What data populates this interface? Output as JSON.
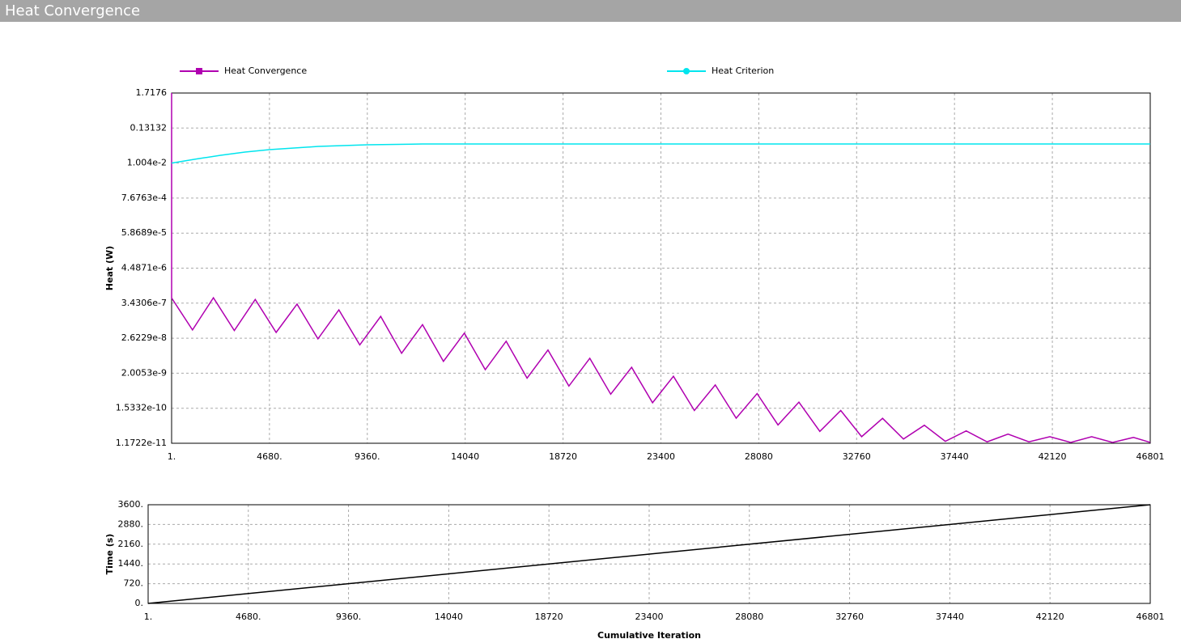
{
  "window": {
    "title": "Heat Convergence"
  },
  "chart_data": [
    {
      "type": "line",
      "y_label": "Heat (W)",
      "ylog": true,
      "grid": true,
      "legend": "top",
      "xlim": [
        1,
        46801
      ],
      "ylim": [
        1.1722e-11,
        1.7176
      ],
      "xticks": [
        {
          "value": 1,
          "label": "1."
        },
        {
          "value": 4680,
          "label": "4680."
        },
        {
          "value": 9360,
          "label": "9360."
        },
        14040,
        18720,
        23400,
        28080,
        32760,
        37440,
        42120,
        46801
      ],
      "yticks": [
        1.7176,
        0.13132,
        {
          "value": 0.01004,
          "label": "1.004e-2"
        },
        {
          "value": 0.00076763,
          "label": "7.6763e-4"
        },
        {
          "value": 5.8689e-05,
          "label": "5.8689e-5"
        },
        {
          "value": 4.4871e-06,
          "label": "4.4871e-6"
        },
        3.4306e-07,
        2.6229e-08,
        2.0053e-09,
        1.5332e-10,
        1.1722e-11
      ],
      "series": [
        {
          "name": "Heat Convergence",
          "color": "#b000b0",
          "marker": "square",
          "x": [
            1,
            2,
            1000,
            2000,
            3000,
            4000,
            5000,
            6000,
            7000,
            8000,
            9000,
            10000,
            11000,
            12000,
            13000,
            14000,
            15000,
            16000,
            17000,
            18000,
            19000,
            20000,
            21000,
            22000,
            23000,
            24000,
            25000,
            26000,
            27000,
            28000,
            29000,
            30000,
            31000,
            32000,
            33000,
            34000,
            35000,
            36000,
            37000,
            38000,
            39000,
            40000,
            41000,
            42000,
            43000,
            44000,
            45000,
            46000,
            46801
          ],
          "values": [
            1.7176,
            5e-07,
            4.8e-08,
            5.1e-07,
            4.6e-08,
            4.5e-07,
            4e-08,
            3.2e-07,
            2.5e-08,
            2.1e-07,
            1.6e-08,
            1.3e-07,
            8.7e-09,
            7.1e-08,
            4.8e-09,
            3.8e-08,
            2.6e-09,
            2.1e-08,
            1.4e-09,
            1.1e-08,
            7.8e-10,
            6e-09,
            4.3e-10,
            3.1e-09,
            2.3e-10,
            1.6e-09,
            1.3e-10,
            8.5e-10,
            7.4e-11,
            4.5e-10,
            4.5e-11,
            2.4e-10,
            2.8e-11,
            1.3e-10,
            1.9e-11,
            7.3e-11,
            1.6e-11,
            4.4e-11,
            1.35e-11,
            2.9e-11,
            1.3e-11,
            2.3e-11,
            1.3e-11,
            1.9e-11,
            1.25e-11,
            1.9e-11,
            1.25e-11,
            1.8e-11,
            1.25e-11
          ]
        },
        {
          "name": "Heat Criterion",
          "color": "#00e5ee",
          "marker": "circle",
          "x": [
            1,
            1170,
            2340,
            3510,
            4680,
            7020,
            9360,
            12000,
            46801
          ],
          "values": [
            0.01004,
            0.0135,
            0.0177,
            0.0225,
            0.0269,
            0.0341,
            0.0385,
            0.0407,
            0.0407
          ]
        }
      ]
    },
    {
      "type": "line",
      "y_label": "Time (s)",
      "x_label": "Cumulative Iteration",
      "grid": true,
      "xlim": [
        1,
        46801
      ],
      "ylim": [
        0,
        3600
      ],
      "xticks": [
        {
          "value": 1,
          "label": "1."
        },
        {
          "value": 4680,
          "label": "4680."
        },
        {
          "value": 9360,
          "label": "9360."
        },
        14040,
        18720,
        23400,
        28080,
        32760,
        37440,
        42120,
        46801
      ],
      "yticks": [
        {
          "value": 0,
          "label": "0."
        },
        {
          "value": 720,
          "label": "720."
        },
        {
          "value": 1440,
          "label": "1440."
        },
        {
          "value": 2160,
          "label": "2160."
        },
        {
          "value": 2880,
          "label": "2880."
        },
        {
          "value": 3600,
          "label": "3600."
        }
      ],
      "series": [
        {
          "color": "#000000",
          "x": [
            1,
            46801
          ],
          "values": [
            0,
            3600
          ]
        }
      ]
    }
  ]
}
